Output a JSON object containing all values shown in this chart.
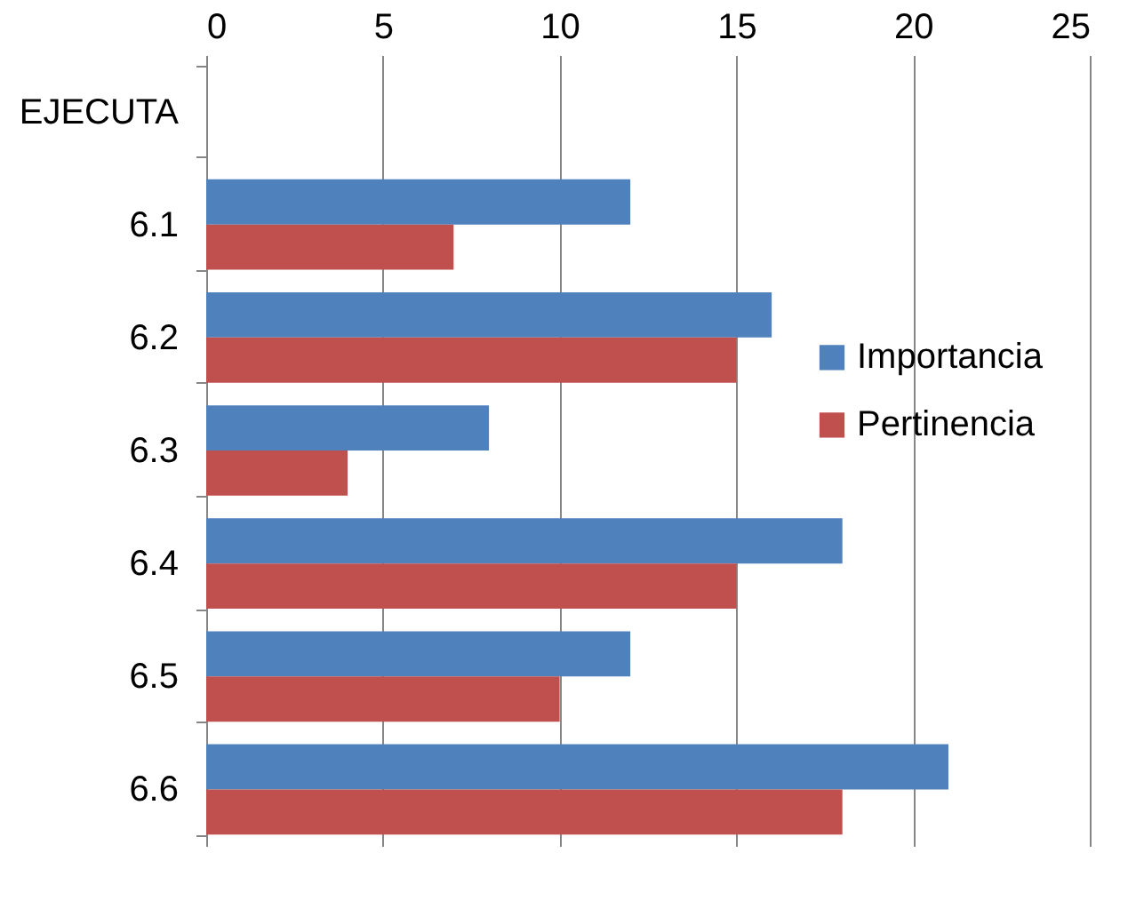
{
  "chart_data": {
    "type": "bar",
    "orientation": "horizontal",
    "categories": [
      "EJECUTA",
      "6.1",
      "6.2",
      "6.3",
      "6.4",
      "6.5",
      "6.6"
    ],
    "series": [
      {
        "name": "Importancia",
        "color": "#4f81bd",
        "values": [
          null,
          12,
          16,
          8,
          18,
          12,
          21
        ]
      },
      {
        "name": "Pertinencia",
        "color": "#c0504d",
        "values": [
          null,
          7,
          15,
          4,
          15,
          10,
          18
        ]
      }
    ],
    "xlim": [
      0,
      25
    ],
    "xticks": [
      0,
      5,
      10,
      15,
      20,
      25
    ],
    "grid": "x",
    "legend": "right"
  }
}
